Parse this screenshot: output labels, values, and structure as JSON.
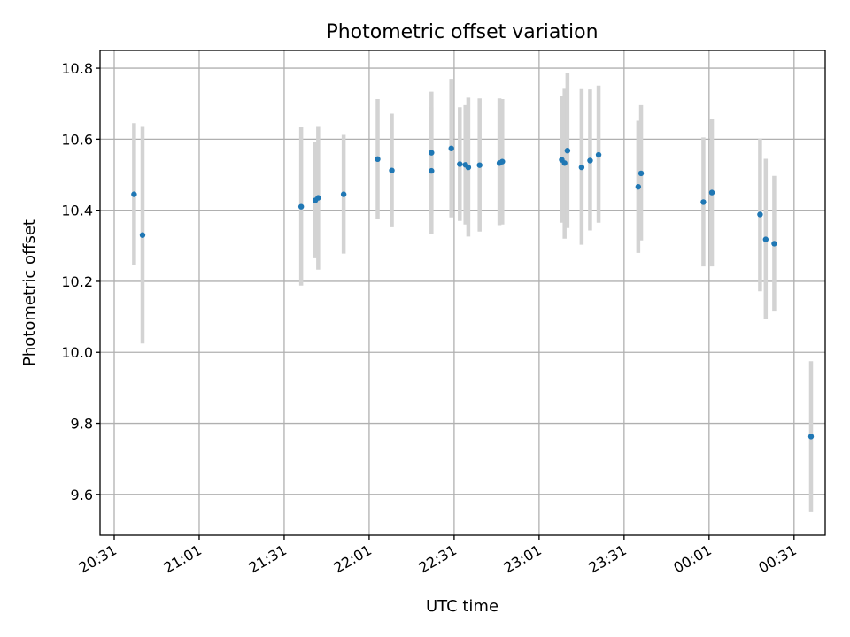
{
  "chart_data": {
    "type": "scatter",
    "title": "Photometric offset variation",
    "xlabel": "UTC time",
    "ylabel": "Photometric offset",
    "x_tick_labels": [
      "20:31",
      "21:01",
      "21:31",
      "22:01",
      "22:31",
      "23:01",
      "23:31",
      "00:01",
      "00:31"
    ],
    "x_tick_times": [
      "20:31",
      "21:01",
      "21:31",
      "22:01",
      "22:31",
      "23:01",
      "23:31",
      "00:01",
      "00:31"
    ],
    "y_ticks": [
      9.6,
      9.8,
      10.0,
      10.2,
      10.4,
      10.6,
      10.8
    ],
    "y_tick_labels": [
      "9.6",
      "9.8",
      "10.0",
      "10.2",
      "10.4",
      "10.6",
      "10.8"
    ],
    "xlim": [
      "20:26",
      "00:42"
    ],
    "ylim": [
      9.485,
      10.85
    ],
    "grid": true,
    "colors": {
      "marker": "#1f77b4",
      "error_bar": "#d3d3d3"
    },
    "points": [
      {
        "t": "20:38",
        "y": 10.445,
        "low": 10.245,
        "high": 10.645
      },
      {
        "t": "20:41",
        "y": 10.33,
        "low": 10.025,
        "high": 10.637
      },
      {
        "t": "21:37",
        "y": 10.41,
        "low": 10.188,
        "high": 10.634
      },
      {
        "t": "21:42",
        "y": 10.428,
        "low": 10.265,
        "high": 10.592
      },
      {
        "t": "21:43",
        "y": 10.435,
        "low": 10.233,
        "high": 10.637
      },
      {
        "t": "21:52",
        "y": 10.445,
        "low": 10.278,
        "high": 10.612
      },
      {
        "t": "22:04",
        "y": 10.544,
        "low": 10.376,
        "high": 10.713
      },
      {
        "t": "22:09",
        "y": 10.512,
        "low": 10.352,
        "high": 10.672
      },
      {
        "t": "22:23",
        "y": 10.562,
        "low": 10.39,
        "high": 10.734
      },
      {
        "t": "22:23",
        "y": 10.511,
        "low": 10.333,
        "high": 10.69
      },
      {
        "t": "22:30",
        "y": 10.574,
        "low": 10.38,
        "high": 10.77
      },
      {
        "t": "22:33",
        "y": 10.53,
        "low": 10.37,
        "high": 10.69
      },
      {
        "t": "22:35",
        "y": 10.528,
        "low": 10.36,
        "high": 10.696
      },
      {
        "t": "22:36",
        "y": 10.521,
        "low": 10.326,
        "high": 10.717
      },
      {
        "t": "22:40",
        "y": 10.527,
        "low": 10.34,
        "high": 10.715
      },
      {
        "t": "22:47",
        "y": 10.533,
        "low": 10.358,
        "high": 10.715
      },
      {
        "t": "22:48",
        "y": 10.537,
        "low": 10.36,
        "high": 10.713
      },
      {
        "t": "23:09",
        "y": 10.542,
        "low": 10.365,
        "high": 10.721
      },
      {
        "t": "23:10",
        "y": 10.533,
        "low": 10.32,
        "high": 10.742
      },
      {
        "t": "23:11",
        "y": 10.568,
        "low": 10.35,
        "high": 10.787
      },
      {
        "t": "23:16",
        "y": 10.521,
        "low": 10.303,
        "high": 10.741
      },
      {
        "t": "23:19",
        "y": 10.54,
        "low": 10.343,
        "high": 10.74
      },
      {
        "t": "23:22",
        "y": 10.556,
        "low": 10.365,
        "high": 10.751
      },
      {
        "t": "23:36",
        "y": 10.466,
        "low": 10.28,
        "high": 10.652
      },
      {
        "t": "23:37",
        "y": 10.504,
        "low": 10.315,
        "high": 10.696
      },
      {
        "t": "23:59",
        "y": 10.423,
        "low": 10.242,
        "high": 10.605
      },
      {
        "t": "00:02",
        "y": 10.45,
        "low": 10.242,
        "high": 10.658
      },
      {
        "t": "00:19",
        "y": 10.388,
        "low": 10.172,
        "high": 10.601
      },
      {
        "t": "00:21",
        "y": 10.318,
        "low": 10.095,
        "high": 10.545
      },
      {
        "t": "00:24",
        "y": 10.306,
        "low": 10.115,
        "high": 10.497
      },
      {
        "t": "00:37",
        "y": 9.763,
        "low": 9.55,
        "high": 9.975
      }
    ]
  }
}
